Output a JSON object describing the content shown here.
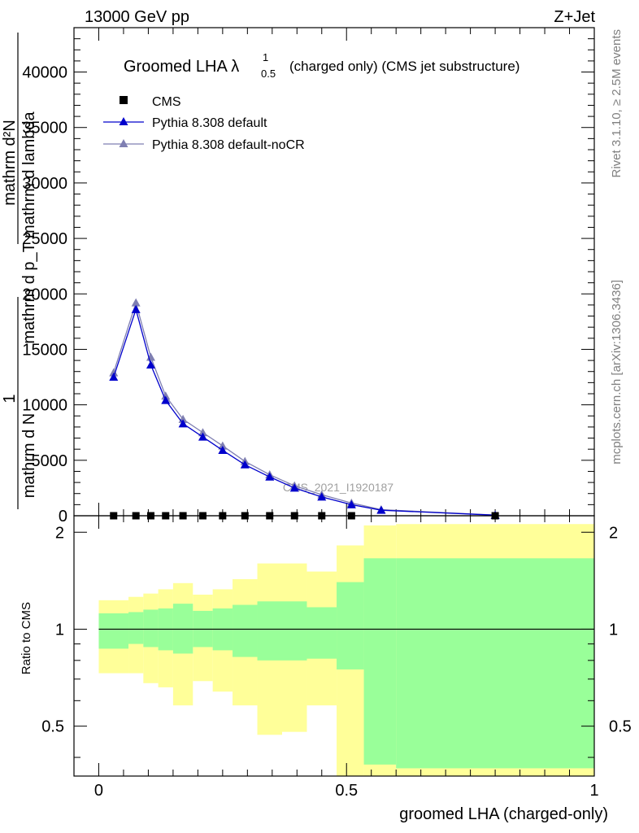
{
  "header": {
    "left": "13000 GeV pp",
    "right": "Z+Jet"
  },
  "side_labels": {
    "rivet": "Rivet 3.1.10, ≥ 2.5M events",
    "mcplots": "mcplots.cern.ch [arXiv:1306.3436]"
  },
  "chart_data": [
    {
      "type": "line",
      "title_main": "Groomed LHA ",
      "title_symbol": "λ",
      "title_sup": "1",
      "title_sub": "0.5",
      "title_tail": "(charged only) (CMS jet substructure)",
      "ylabel_numerator": "1",
      "ylabel_denominator": "mathrm d N",
      "ylabel_main": "mathrm d²N",
      "ylabel_main_denominator": "mathrm d p_T mathrm d lambda",
      "watermark": "CMS_2021_I1920187",
      "xlim": [
        -0.05,
        1.0
      ],
      "ylim": [
        0,
        44000
      ],
      "yticks": [
        0,
        5000,
        10000,
        15000,
        20000,
        25000,
        30000,
        35000,
        40000
      ],
      "ytick_labels": [
        "0",
        "5000",
        "10000",
        "15000",
        "20000",
        "25000",
        "30000",
        "35000",
        "40000"
      ],
      "legend": [
        "CMS",
        "Pythia 8.308 default",
        "Pythia 8.308 default-noCR"
      ],
      "legend_placement": "top-left",
      "colors": {
        "data": "#000000",
        "default": "#0000cc",
        "noCR": "#7f7fb2"
      },
      "x": [
        0.03,
        0.075,
        0.105,
        0.135,
        0.17,
        0.21,
        0.25,
        0.295,
        0.345,
        0.395,
        0.45,
        0.51,
        0.57,
        0.8
      ],
      "series": [
        {
          "name": "CMS",
          "marker": "square",
          "values": [
            0,
            0,
            0,
            0,
            0,
            0,
            0,
            0,
            0,
            0,
            0,
            0,
            0,
            0
          ]
        },
        {
          "name": "Pythia 8.308 default",
          "marker": "triangle",
          "values": [
            12500,
            18600,
            13600,
            10400,
            8300,
            7100,
            5900,
            4600,
            3500,
            2500,
            1700,
            1000,
            500,
            50
          ]
        },
        {
          "name": "Pythia 8.308 default-noCR",
          "marker": "triangle",
          "values": [
            12900,
            19200,
            14300,
            10800,
            8700,
            7500,
            6300,
            4900,
            3700,
            2700,
            1900,
            1150,
            550,
            60
          ]
        }
      ]
    },
    {
      "type": "area",
      "ylabel": "Ratio to CMS",
      "xlabel": "groomed LHA (charged-only)",
      "xlim": [
        -0.05,
        1.0
      ],
      "ylim": [
        0.35,
        2.25
      ],
      "xticks": [
        0,
        0.5,
        1
      ],
      "xtick_labels": [
        "0",
        "0.5",
        "1"
      ],
      "yticks": [
        0.5,
        1,
        2
      ],
      "ytick_labels": [
        "0.5",
        "1",
        "2"
      ],
      "reference_line": 1,
      "colors": {
        "inner": "#99ff99",
        "outer": "#ffff99",
        "line": "#000000"
      },
      "bins": [
        {
          "x0": 0.0,
          "x1": 0.06,
          "inner": [
            0.87,
            1.12
          ],
          "outer": [
            0.73,
            1.23
          ]
        },
        {
          "x0": 0.06,
          "x1": 0.09,
          "inner": [
            0.9,
            1.13
          ],
          "outer": [
            0.73,
            1.26
          ]
        },
        {
          "x0": 0.09,
          "x1": 0.12,
          "inner": [
            0.88,
            1.15
          ],
          "outer": [
            0.68,
            1.29
          ]
        },
        {
          "x0": 0.12,
          "x1": 0.15,
          "inner": [
            0.86,
            1.16
          ],
          "outer": [
            0.66,
            1.33
          ]
        },
        {
          "x0": 0.15,
          "x1": 0.19,
          "inner": [
            0.84,
            1.2
          ],
          "outer": [
            0.58,
            1.39
          ]
        },
        {
          "x0": 0.19,
          "x1": 0.23,
          "inner": [
            0.88,
            1.14
          ],
          "outer": [
            0.69,
            1.28
          ]
        },
        {
          "x0": 0.23,
          "x1": 0.27,
          "inner": [
            0.86,
            1.16
          ],
          "outer": [
            0.64,
            1.33
          ]
        },
        {
          "x0": 0.27,
          "x1": 0.32,
          "inner": [
            0.82,
            1.19
          ],
          "outer": [
            0.58,
            1.43
          ]
        },
        {
          "x0": 0.32,
          "x1": 0.37,
          "inner": [
            0.8,
            1.22
          ],
          "outer": [
            0.47,
            1.6
          ]
        },
        {
          "x0": 0.37,
          "x1": 0.42,
          "inner": [
            0.8,
            1.22
          ],
          "outer": [
            0.48,
            1.6
          ]
        },
        {
          "x0": 0.42,
          "x1": 0.48,
          "inner": [
            0.81,
            1.17
          ],
          "outer": [
            0.58,
            1.51
          ]
        },
        {
          "x0": 0.48,
          "x1": 0.535,
          "inner": [
            0.75,
            1.4
          ],
          "outer": [
            0.35,
            1.82
          ]
        },
        {
          "x0": 0.535,
          "x1": 0.6,
          "inner": [
            0.38,
            1.66
          ],
          "outer": [
            0.35,
            2.1
          ]
        },
        {
          "x0": 0.6,
          "x1": 1.0,
          "inner": [
            0.37,
            1.66
          ],
          "outer": [
            0.35,
            2.12
          ]
        }
      ]
    }
  ]
}
